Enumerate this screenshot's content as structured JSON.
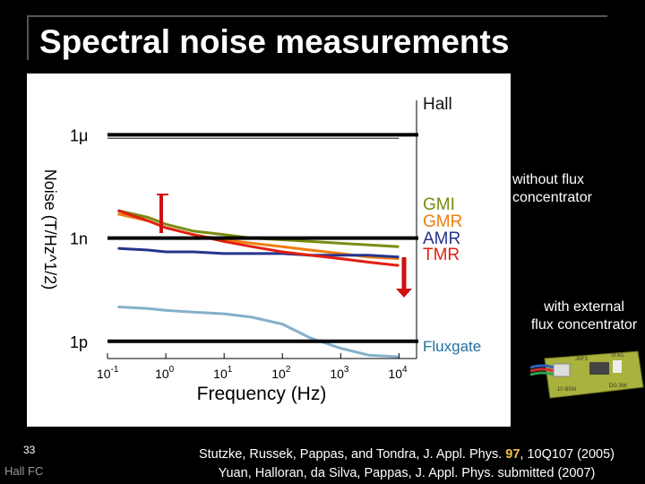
{
  "slide": {
    "title": "Spectral noise measurements",
    "number": "33",
    "footer": "Hall FC",
    "notes": {
      "without_line1": "without flux",
      "without_line2": "concentrator",
      "with_line1": "with external",
      "with_line2": "flux concentrator"
    },
    "citation": {
      "line1_prefix": "Stutzke, Russek, Pappas, and Tondra, J. Appl. Phys. ",
      "line1_volume": "97",
      "line1_suffix": ", 10Q107 (2005)",
      "line2": "Yuan, Halloran, da Silva, Pappas, J. Appl. Phys. submitted (2007)"
    },
    "device_labels": [
      "JAF3",
      "10 B5W",
      "15 KG",
      "DG 3W"
    ]
  },
  "chart_data": {
    "type": "line",
    "title": "",
    "xlabel": "Frequency (Hz)",
    "ylabel": "Noise (T/Hz^1/2)",
    "xscale": "log",
    "x_tick_exponents": [
      -1,
      0,
      1,
      2,
      3,
      4
    ],
    "x_tick_base": "10",
    "xlim": [
      0.1,
      20000
    ],
    "ylim_decades": [
      -12.5,
      -5
    ],
    "level_lines": [
      {
        "label": "1μ",
        "value_exp": -6
      },
      {
        "label": "1n",
        "value_exp": -9
      },
      {
        "label": "1p",
        "value_exp": -12
      }
    ],
    "series": [
      {
        "name": "Hall",
        "color": "#111111",
        "x": [
          0.1,
          1,
          10,
          100,
          1000,
          10000
        ],
        "y_exp": [
          -6.1,
          -6.1,
          -6.1,
          -6.1,
          -6.1,
          -6.1
        ]
      },
      {
        "name": "GMI",
        "color": "#7a8c10",
        "x": [
          0.15,
          0.5,
          1,
          3,
          10,
          30,
          100,
          300,
          1000,
          3000,
          10000
        ],
        "y_exp": [
          -8.2,
          -8.4,
          -8.6,
          -8.8,
          -8.9,
          -9.0,
          -9.05,
          -9.1,
          -9.15,
          -9.2,
          -9.25
        ]
      },
      {
        "name": "GMR",
        "color": "#f07e10",
        "x": [
          0.15,
          0.5,
          1,
          3,
          10,
          30,
          100,
          300,
          1000,
          3000,
          10000
        ],
        "y_exp": [
          -8.3,
          -8.5,
          -8.7,
          -8.9,
          -9.05,
          -9.15,
          -9.25,
          -9.35,
          -9.45,
          -9.55,
          -9.6
        ]
      },
      {
        "name": "AMR",
        "color": "#26348c",
        "x": [
          0.15,
          0.5,
          1,
          3,
          10,
          30,
          100,
          300,
          1000,
          3000,
          10000
        ],
        "y_exp": [
          -9.3,
          -9.35,
          -9.4,
          -9.4,
          -9.45,
          -9.45,
          -9.45,
          -9.5,
          -9.5,
          -9.5,
          -9.55
        ]
      },
      {
        "name": "TMR",
        "color": "#e02010",
        "x": [
          0.15,
          0.5,
          1,
          3,
          10,
          30,
          100,
          300,
          1000,
          3000,
          10000
        ],
        "y_exp": [
          -8.2,
          -8.5,
          -8.7,
          -8.9,
          -9.1,
          -9.25,
          -9.4,
          -9.5,
          -9.6,
          -9.7,
          -9.8
        ]
      },
      {
        "name": "Fluxgate",
        "color": "#2070a0",
        "x": [
          0.15,
          0.5,
          1,
          3,
          10,
          30,
          100,
          300,
          1000,
          3000,
          10000
        ],
        "y_exp": [
          -11.0,
          -11.05,
          -11.1,
          -11.15,
          -11.2,
          -11.3,
          -11.5,
          -11.9,
          -12.2,
          -12.4,
          -12.45
        ]
      }
    ]
  }
}
